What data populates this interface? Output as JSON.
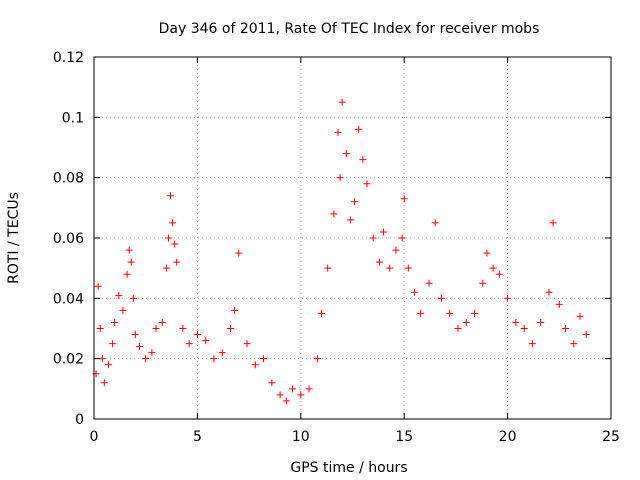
{
  "chart_data": {
    "type": "scatter",
    "title": "Day 346 of 2011, Rate Of TEC Index for receiver mobs",
    "xlabel": "GPS time / hours",
    "ylabel": "ROTI / TECUs",
    "xlim": [
      0,
      25
    ],
    "ylim": [
      0,
      0.12
    ],
    "x_ticks": [
      0,
      5,
      10,
      15,
      20,
      25
    ],
    "x_tick_labels": [
      "0",
      "5",
      "10",
      "15",
      "20",
      "25"
    ],
    "y_ticks": [
      0,
      0.02,
      0.04,
      0.06,
      0.08,
      0.1,
      0.12
    ],
    "y_tick_labels": [
      "0",
      "0.02",
      "0.04",
      "0.06",
      "0.08",
      "0.1",
      "0.12"
    ],
    "grid": true,
    "marker": "plus",
    "color": "#ff0000",
    "series": [
      {
        "x": [
          0.1,
          0.2,
          0.3,
          0.4,
          0.5,
          0.7,
          0.9,
          1.0,
          1.2,
          1.4,
          1.6,
          1.7,
          1.8,
          1.9,
          2.0,
          2.2,
          2.5,
          2.8,
          3.0,
          3.3,
          3.5,
          3.6,
          3.7,
          3.8,
          3.9,
          4.0,
          4.3,
          4.6,
          5.0,
          5.4,
          5.8,
          6.2,
          6.6,
          6.8,
          7.0,
          7.4,
          7.8,
          8.2,
          8.6,
          9.0,
          9.3,
          9.6,
          10.0,
          10.4,
          10.8,
          11.0,
          11.3,
          11.6,
          11.8,
          11.9,
          12.0,
          12.2,
          12.4,
          12.6,
          12.8,
          13.0,
          13.2,
          13.5,
          13.8,
          14.0,
          14.3,
          14.6,
          14.9,
          15.0,
          15.2,
          15.5,
          15.8,
          16.2,
          16.5,
          16.8,
          17.2,
          17.6,
          18.0,
          18.4,
          18.8,
          19.0,
          19.3,
          19.6,
          20.0,
          20.4,
          20.8,
          21.2,
          21.6,
          22.0,
          22.2,
          22.5,
          22.8,
          23.2,
          23.5,
          23.8
        ],
        "y": [
          0.015,
          0.044,
          0.03,
          0.02,
          0.012,
          0.018,
          0.025,
          0.032,
          0.041,
          0.036,
          0.048,
          0.056,
          0.052,
          0.04,
          0.028,
          0.024,
          0.02,
          0.022,
          0.03,
          0.032,
          0.05,
          0.06,
          0.074,
          0.065,
          0.058,
          0.052,
          0.03,
          0.025,
          0.028,
          0.026,
          0.02,
          0.022,
          0.03,
          0.036,
          0.055,
          0.025,
          0.018,
          0.02,
          0.012,
          0.008,
          0.006,
          0.01,
          0.008,
          0.01,
          0.02,
          0.035,
          0.05,
          0.068,
          0.095,
          0.08,
          0.105,
          0.088,
          0.066,
          0.072,
          0.096,
          0.086,
          0.078,
          0.06,
          0.052,
          0.062,
          0.05,
          0.056,
          0.06,
          0.073,
          0.05,
          0.042,
          0.035,
          0.045,
          0.065,
          0.04,
          0.035,
          0.03,
          0.032,
          0.035,
          0.045,
          0.055,
          0.05,
          0.048,
          0.04,
          0.032,
          0.03,
          0.025,
          0.032,
          0.042,
          0.065,
          0.038,
          0.03,
          0.025,
          0.034,
          0.028
        ]
      }
    ]
  }
}
